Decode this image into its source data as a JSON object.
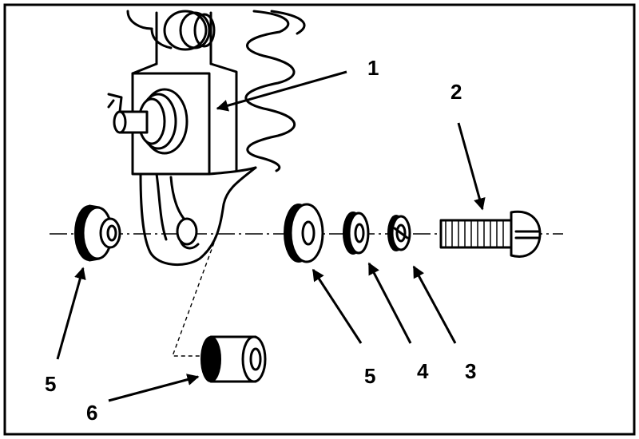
{
  "figure": {
    "description_labels": {
      "label_1": "1",
      "label_2": "2",
      "label_3": "3",
      "label_4": "4",
      "label_5a": "5",
      "label_5b": "5",
      "label_6": "6"
    }
  }
}
